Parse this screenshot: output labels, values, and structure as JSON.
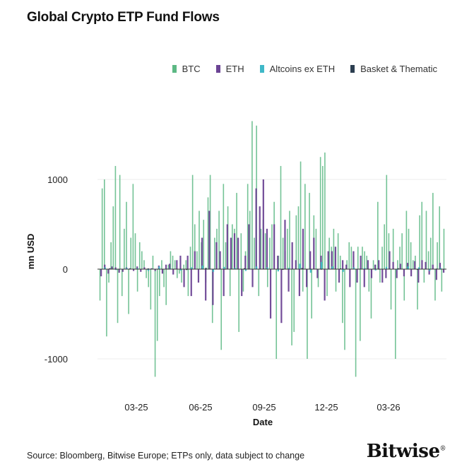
{
  "title": "Global Crypto ETP Fund Flows",
  "source": "Source: Bloomberg, Bitwise Europe; ETPs only, data subject to change",
  "logo": "Bitwise",
  "chart_data": {
    "type": "bar",
    "title": "Global Crypto ETP Fund Flows",
    "xlabel": "Date",
    "ylabel": "mn USD",
    "ylim": [
      -1300,
      1700
    ],
    "yticks": [
      -1000,
      0,
      1000
    ],
    "xticks": [
      "03-25",
      "06-25",
      "09-25",
      "12-25",
      "03-26"
    ],
    "legend_position": "top-right",
    "grid": true,
    "series": [
      {
        "name": "BTC",
        "color": "#5cb884",
        "values": [
          -350,
          900,
          1000,
          -750,
          -150,
          300,
          700,
          1150,
          -600,
          1050,
          -300,
          450,
          750,
          -500,
          350,
          950,
          400,
          -250,
          300,
          200,
          100,
          -100,
          -200,
          -450,
          150,
          -1200,
          -800,
          -300,
          100,
          -200,
          -400,
          50,
          200,
          150,
          100,
          -100,
          -50,
          -150,
          50,
          100,
          -300,
          250,
          1050,
          500,
          200,
          650,
          300,
          550,
          -150,
          800,
          1050,
          -600,
          350,
          450,
          650,
          -900,
          950,
          300,
          700,
          -300,
          500,
          450,
          850,
          -700,
          400,
          -250,
          200,
          950,
          650,
          1650,
          350,
          1600,
          -300,
          450,
          550,
          400,
          -200,
          350,
          500,
          750,
          -1000,
          150,
          1150,
          350,
          200,
          450,
          650,
          -850,
          -700,
          600,
          700,
          1200,
          -250,
          950,
          -1000,
          850,
          -550,
          600,
          450,
          -200,
          1250,
          1150,
          1300,
          -300,
          350,
          250,
          450,
          -250,
          400,
          150,
          -600,
          -900,
          100,
          300,
          250,
          150,
          -1200,
          250,
          -800,
          250,
          200,
          150,
          -250,
          -550,
          100,
          50,
          750,
          -150,
          250,
          500,
          1050,
          400,
          -450,
          450,
          -1000,
          100,
          250,
          400,
          -350,
          650,
          450,
          300,
          100,
          150,
          -450,
          600,
          750,
          -150,
          650,
          200,
          350,
          850,
          -350,
          300,
          700,
          -250,
          450
        ],
        "values_note": "daily flows, read approximately from bars left to right"
      },
      {
        "name": "ETH",
        "color": "#6b4394",
        "values": [
          -80,
          50,
          -50,
          30,
          20,
          -40,
          -30,
          20,
          10,
          -20,
          30,
          -30,
          20,
          -10,
          10,
          -20,
          40,
          -50,
          50,
          60,
          -60,
          100,
          150,
          -200,
          150,
          -300,
          200,
          -150,
          350,
          -350,
          650,
          -400,
          300,
          200,
          -300,
          500,
          350,
          400,
          350,
          -300,
          150,
          500,
          -200,
          900,
          700,
          1000,
          450,
          -550,
          500,
          150,
          -600,
          550,
          -250,
          300,
          100,
          -300,
          450,
          -200,
          200,
          350,
          -100,
          150,
          -350,
          200,
          200,
          250,
          -150,
          100,
          50,
          -200,
          200,
          -150,
          150,
          -200,
          100,
          -100,
          50,
          100,
          -150,
          -100,
          200,
          80,
          -100,
          60,
          -80,
          70,
          -80,
          90,
          -150,
          100,
          80,
          -60,
          50,
          -120,
          70,
          -40
        ],
        "values_note": "approximate"
      },
      {
        "name": "Altcoins ex ETH",
        "color": "#3fb8c8",
        "values": [
          20,
          -10,
          15,
          10,
          -20,
          30,
          10,
          -15,
          20,
          40,
          -30,
          25,
          15,
          -20,
          30,
          20,
          -25,
          15,
          60,
          -40,
          80,
          30,
          -30,
          20,
          15,
          -15,
          25,
          -10,
          30,
          20,
          -20,
          15
        ],
        "values_note": "approximate"
      },
      {
        "name": "Basket & Thematic",
        "color": "#2c3e50",
        "values": [
          10,
          -5,
          8,
          5,
          -10,
          15,
          -5,
          10,
          5,
          -8,
          12,
          -6,
          8,
          5,
          -5,
          10,
          -8,
          6
        ],
        "values_note": "approximate"
      }
    ]
  }
}
